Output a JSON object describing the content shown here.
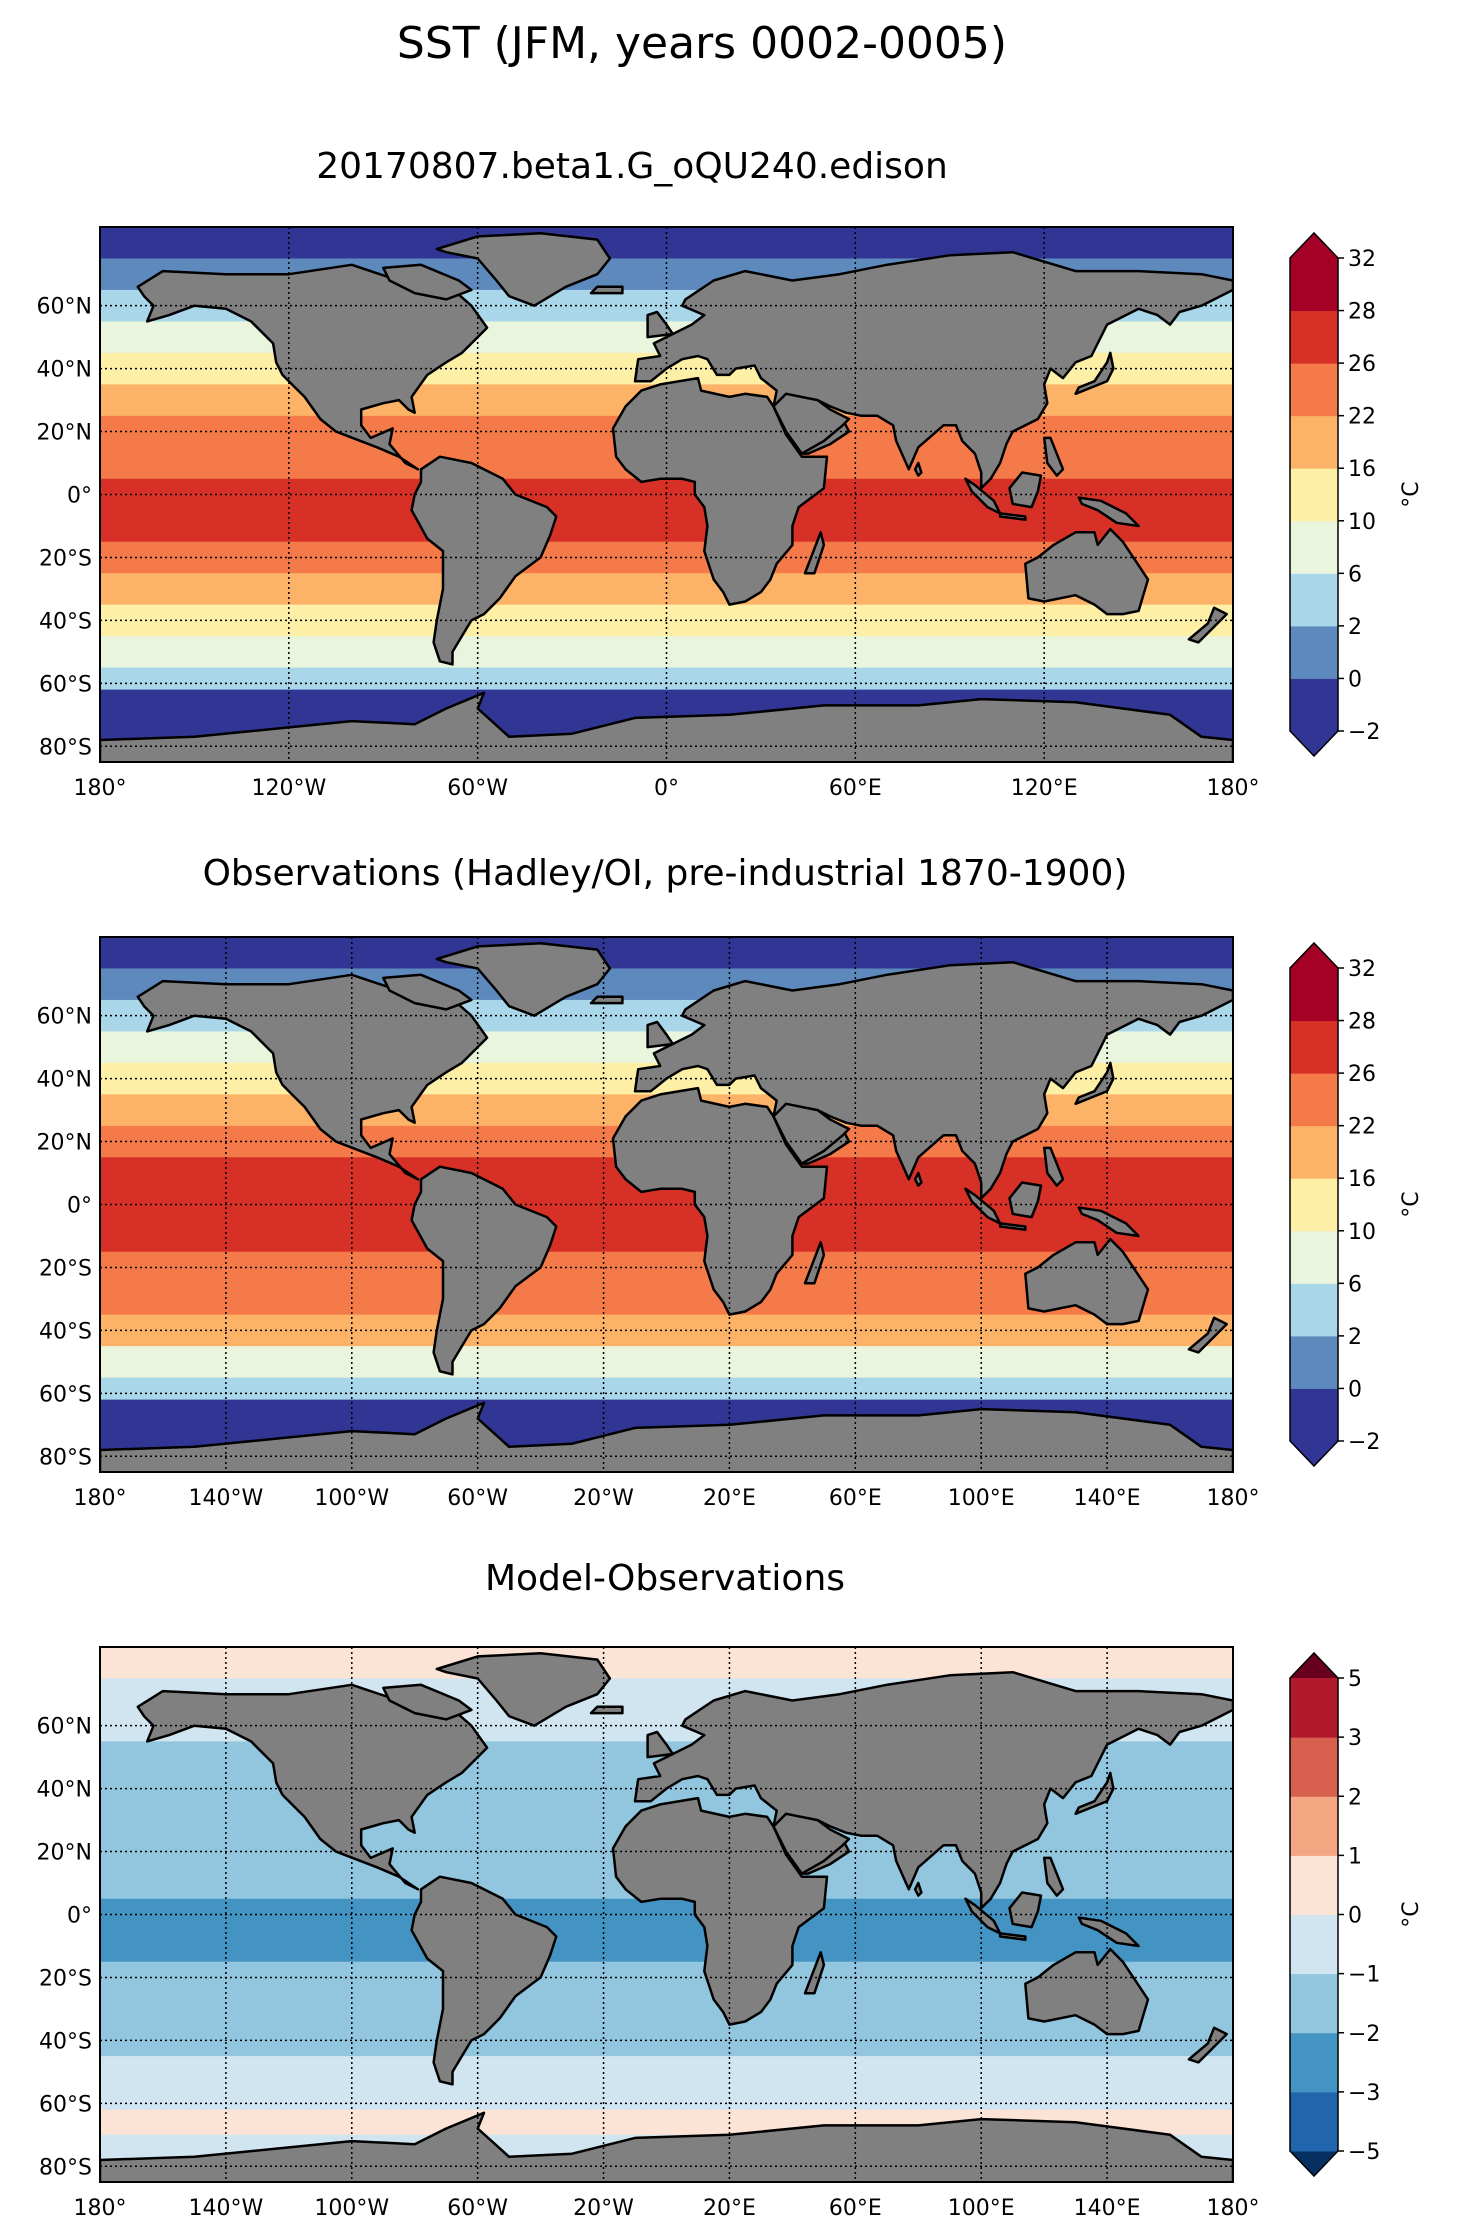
{
  "figure": {
    "suptitle": "SST (JFM, years 0002-0005)",
    "colors": {
      "land": "#808080",
      "coast": "#000000",
      "seaice_edge": "#ffffff"
    }
  },
  "chart_data": [
    {
      "id": "model",
      "type": "heatmap",
      "title": "20170807.beta1.G_oQU240.edison",
      "xlim": [
        -180,
        180
      ],
      "ylim": [
        -85,
        85
      ],
      "grid": true,
      "x_ticks": [
        {
          "value": -180,
          "label": "180°"
        },
        {
          "value": -120,
          "label": "120°W"
        },
        {
          "value": -60,
          "label": "60°W"
        },
        {
          "value": 0,
          "label": "0°"
        },
        {
          "value": 60,
          "label": "60°E"
        },
        {
          "value": 120,
          "label": "120°E"
        },
        {
          "value": 180,
          "label": "180°"
        }
      ],
      "y_ticks": [
        {
          "value": 60,
          "label": "60°N"
        },
        {
          "value": 40,
          "label": "40°N"
        },
        {
          "value": 20,
          "label": "20°N"
        },
        {
          "value": 0,
          "label": "0°"
        },
        {
          "value": -20,
          "label": "20°S"
        },
        {
          "value": -40,
          "label": "40°S"
        },
        {
          "value": -60,
          "label": "60°S"
        },
        {
          "value": -80,
          "label": "80°S"
        }
      ],
      "colorbar": {
        "label": "°C",
        "levels": [
          -2,
          0,
          2,
          6,
          10,
          16,
          22,
          26,
          28,
          32
        ],
        "tick_labels": [
          "−2",
          "0",
          "2",
          "6",
          "10",
          "16",
          "22",
          "26",
          "28",
          "32"
        ],
        "colors": [
          "#313695",
          "#5e89bd",
          "#a9d6e8",
          "#e9f5dd",
          "#fdefa6",
          "#fdb367",
          "#f57a4a",
          "#d73027",
          "#a50026"
        ],
        "extend": "both"
      },
      "zonal_profile": [
        {
          "lat": 85,
          "value": -1.8
        },
        {
          "lat": 75,
          "value": -1.6
        },
        {
          "lat": 65,
          "value": 2.5
        },
        {
          "lat": 55,
          "value": 5
        },
        {
          "lat": 45,
          "value": 11
        },
        {
          "lat": 35,
          "value": 17
        },
        {
          "lat": 25,
          "value": 23
        },
        {
          "lat": 15,
          "value": 25
        },
        {
          "lat": 5,
          "value": 26.5
        },
        {
          "lat": -5,
          "value": 27
        },
        {
          "lat": -15,
          "value": 25.5
        },
        {
          "lat": -25,
          "value": 23
        },
        {
          "lat": -35,
          "value": 19
        },
        {
          "lat": -45,
          "value": 11
        },
        {
          "lat": -55,
          "value": 4
        },
        {
          "lat": -62,
          "value": 0.5
        },
        {
          "lat": -70,
          "value": -1.5
        },
        {
          "lat": -85,
          "value": -1.8
        }
      ]
    },
    {
      "id": "obs",
      "type": "heatmap",
      "title": "Observations (Hadley/OI, pre-industrial 1870-1900)",
      "xlim": [
        -180,
        180
      ],
      "ylim": [
        -85,
        85
      ],
      "grid": true,
      "x_ticks": [
        {
          "value": -180,
          "label": "180°"
        },
        {
          "value": -140,
          "label": "140°W"
        },
        {
          "value": -100,
          "label": "100°W"
        },
        {
          "value": -60,
          "label": "60°W"
        },
        {
          "value": -20,
          "label": "20°W"
        },
        {
          "value": 20,
          "label": "20°E"
        },
        {
          "value": 60,
          "label": "60°E"
        },
        {
          "value": 100,
          "label": "100°E"
        },
        {
          "value": 140,
          "label": "140°E"
        },
        {
          "value": 180,
          "label": "180°"
        }
      ],
      "y_ticks": [
        {
          "value": 60,
          "label": "60°N"
        },
        {
          "value": 40,
          "label": "40°N"
        },
        {
          "value": 20,
          "label": "20°N"
        },
        {
          "value": 0,
          "label": "0°"
        },
        {
          "value": -20,
          "label": "20°S"
        },
        {
          "value": -40,
          "label": "40°S"
        },
        {
          "value": -60,
          "label": "60°S"
        },
        {
          "value": -80,
          "label": "80°S"
        }
      ],
      "colorbar": {
        "label": "°C",
        "levels": [
          -2,
          0,
          2,
          6,
          10,
          16,
          22,
          26,
          28,
          32
        ],
        "tick_labels": [
          "−2",
          "0",
          "2",
          "6",
          "10",
          "16",
          "22",
          "26",
          "28",
          "32"
        ],
        "colors": [
          "#313695",
          "#5e89bd",
          "#a9d6e8",
          "#e9f5dd",
          "#fdefa6",
          "#fdb367",
          "#f57a4a",
          "#d73027",
          "#a50026"
        ],
        "extend": "both"
      },
      "zonal_profile": [
        {
          "lat": 85,
          "value": -1.8
        },
        {
          "lat": 75,
          "value": -1.2
        },
        {
          "lat": 65,
          "value": 3
        },
        {
          "lat": 55,
          "value": 6
        },
        {
          "lat": 45,
          "value": 12
        },
        {
          "lat": 35,
          "value": 19
        },
        {
          "lat": 25,
          "value": 24
        },
        {
          "lat": 15,
          "value": 26.5
        },
        {
          "lat": 5,
          "value": 27.5
        },
        {
          "lat": -5,
          "value": 28.3
        },
        {
          "lat": -15,
          "value": 27
        },
        {
          "lat": -25,
          "value": 24
        },
        {
          "lat": -35,
          "value": 20
        },
        {
          "lat": -45,
          "value": 12
        },
        {
          "lat": -55,
          "value": 4.5
        },
        {
          "lat": -62,
          "value": 1
        },
        {
          "lat": -70,
          "value": -1.2
        },
        {
          "lat": -85,
          "value": -1.8
        }
      ]
    },
    {
      "id": "bias",
      "type": "heatmap",
      "title": "Model-Observations",
      "xlim": [
        -180,
        180
      ],
      "ylim": [
        -85,
        85
      ],
      "grid": true,
      "x_ticks": [
        {
          "value": -180,
          "label": "180°"
        },
        {
          "value": -140,
          "label": "140°W"
        },
        {
          "value": -100,
          "label": "100°W"
        },
        {
          "value": -60,
          "label": "60°W"
        },
        {
          "value": -20,
          "label": "20°W"
        },
        {
          "value": 20,
          "label": "20°E"
        },
        {
          "value": 60,
          "label": "60°E"
        },
        {
          "value": 100,
          "label": "100°E"
        },
        {
          "value": 140,
          "label": "140°E"
        },
        {
          "value": 180,
          "label": "180°"
        }
      ],
      "y_ticks": [
        {
          "value": 60,
          "label": "60°N"
        },
        {
          "value": 40,
          "label": "40°N"
        },
        {
          "value": 20,
          "label": "20°N"
        },
        {
          "value": 0,
          "label": "0°"
        },
        {
          "value": -20,
          "label": "20°S"
        },
        {
          "value": -40,
          "label": "40°S"
        },
        {
          "value": -60,
          "label": "60°S"
        },
        {
          "value": -80,
          "label": "80°S"
        }
      ],
      "colorbar": {
        "label": "°C",
        "levels": [
          -5,
          -3,
          -2,
          -1,
          0,
          1,
          2,
          3,
          5
        ],
        "tick_labels": [
          "−5",
          "−3",
          "−2",
          "−1",
          "0",
          "1",
          "2",
          "3",
          "5"
        ],
        "colors": [
          "#2166ac",
          "#4393c3",
          "#92c5de",
          "#d1e5f0",
          "#fbe3d6",
          "#f4a582",
          "#d6604d",
          "#b2182b"
        ],
        "extend_colors": {
          "low": "#053061",
          "high": "#67001f"
        },
        "extend": "both"
      },
      "zonal_profile": [
        {
          "lat": 85,
          "value": 0.3
        },
        {
          "lat": 75,
          "value": -0.3
        },
        {
          "lat": 65,
          "value": -0.8
        },
        {
          "lat": 55,
          "value": -1.2
        },
        {
          "lat": 45,
          "value": -1.3
        },
        {
          "lat": 35,
          "value": -1.5
        },
        {
          "lat": 25,
          "value": -1.6
        },
        {
          "lat": 15,
          "value": -1.8
        },
        {
          "lat": 5,
          "value": -2.2
        },
        {
          "lat": -5,
          "value": -2.4
        },
        {
          "lat": -15,
          "value": -1.9
        },
        {
          "lat": -25,
          "value": -1.5
        },
        {
          "lat": -35,
          "value": -1.2
        },
        {
          "lat": -45,
          "value": -0.9
        },
        {
          "lat": -55,
          "value": -0.5
        },
        {
          "lat": -62,
          "value": 0.4
        },
        {
          "lat": -70,
          "value": -0.3
        },
        {
          "lat": -85,
          "value": 0
        }
      ]
    }
  ]
}
